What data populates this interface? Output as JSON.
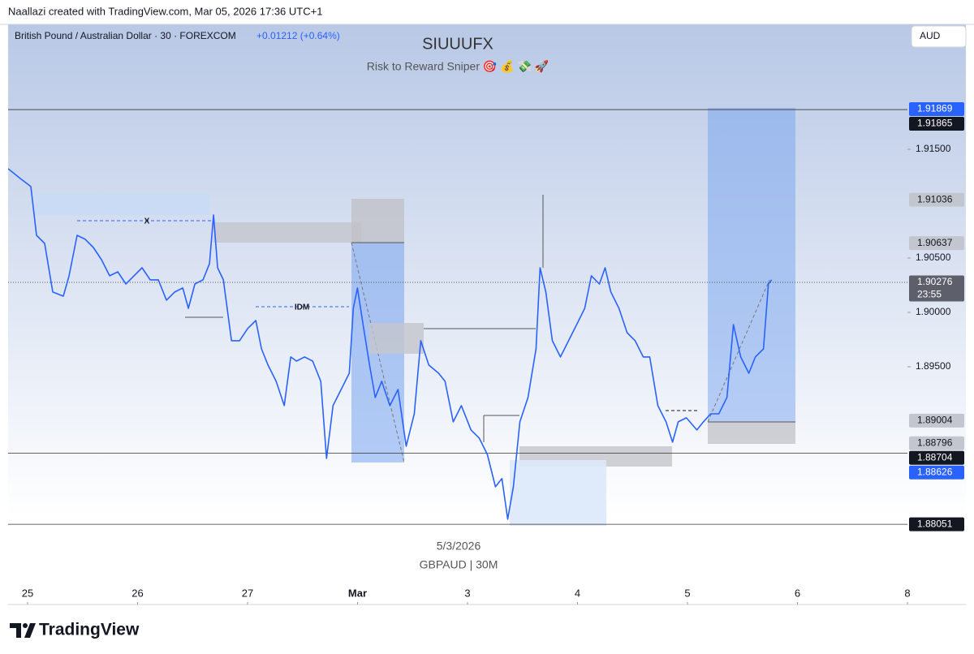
{
  "header": "Naallazi created with TradingView.com, Mar 05, 2026 17:36 UTC+1",
  "footer_logo": "TradingView",
  "chart_data": {
    "type": "line",
    "symbol": "British Pound / Australian Dollar · 30 · FOREXCOM",
    "change": "+0.01212 (+0.64%)",
    "currency": "AUD",
    "title": "SIUUUFX",
    "subtitle": "Risk to Reward Sniper 🎯 💰 💸 🚀",
    "annotations": [
      "X",
      "IDM",
      "5/3/2026",
      "GBPAUD | 30M"
    ],
    "color": "#2962ff",
    "x": [
      -0.177,
      -0.066,
      0.03,
      0.081,
      0.155,
      0.229,
      0.325,
      0.377,
      0.45,
      0.524,
      0.598,
      0.672,
      0.746,
      0.82,
      0.894,
      0.968,
      1.041,
      1.115,
      1.189,
      1.263,
      1.337,
      1.411,
      1.462,
      1.521,
      1.595,
      1.654,
      1.691,
      1.728,
      1.78,
      1.854,
      1.927,
      2.001,
      2.075,
      2.127,
      2.186,
      2.26,
      2.334,
      2.393,
      2.445,
      2.518,
      2.592,
      2.666,
      2.718,
      2.777,
      2.851,
      2.925,
      2.962,
      2.999,
      3.05,
      3.109,
      3.161,
      3.22,
      3.294,
      3.368,
      3.442,
      3.516,
      3.575,
      3.648,
      3.737,
      3.796,
      3.87,
      3.944,
      4.032,
      4.106,
      4.18,
      4.254,
      4.313,
      4.365,
      4.417,
      4.476,
      4.55,
      4.623,
      4.66,
      4.712,
      4.771,
      4.845,
      4.919,
      4.993,
      5.066,
      5.126,
      5.199,
      5.251,
      5.303,
      5.377,
      5.451,
      5.524,
      5.598,
      5.657,
      5.731,
      5.805,
      5.864,
      5.916,
      5.99,
      6.086,
      6.145,
      6.211,
      6.285,
      6.359,
      6.418,
      6.484,
      6.558,
      6.617,
      6.691,
      6.736,
      6.765
    ],
    "values": [
      1.91321,
      1.91231,
      1.91157,
      1.90709,
      1.90634,
      1.90187,
      1.90149,
      1.90336,
      1.90709,
      1.90672,
      1.90597,
      1.90485,
      1.90336,
      1.90373,
      1.90261,
      1.90336,
      1.9041,
      1.90299,
      1.90299,
      1.90112,
      1.90187,
      1.90224,
      1.90037,
      1.90261,
      1.90299,
      1.90448,
      1.90896,
      1.9041,
      1.90299,
      1.89739,
      1.89739,
      1.89851,
      1.89925,
      1.89664,
      1.89515,
      1.89366,
      1.89142,
      1.8959,
      1.89552,
      1.8959,
      1.89552,
      1.89366,
      1.88657,
      1.89142,
      1.89291,
      1.8944,
      1.90037,
      1.90224,
      1.89888,
      1.89515,
      1.89217,
      1.89366,
      1.89142,
      1.89291,
      1.88769,
      1.89067,
      1.89739,
      1.89515,
      1.8944,
      1.89366,
      1.88993,
      1.89142,
      1.88918,
      1.88844,
      1.88694,
      1.88396,
      1.88471,
      1.88098,
      1.88396,
      1.88993,
      1.89217,
      1.89664,
      1.9041,
      1.90187,
      1.89739,
      1.8959,
      1.89739,
      1.89888,
      1.90037,
      1.90336,
      1.90261,
      1.9041,
      1.90187,
      1.90037,
      1.89813,
      1.89739,
      1.8959,
      1.8959,
      1.89142,
      1.88993,
      1.88806,
      1.88993,
      1.8903,
      1.88918,
      1.88993,
      1.89067,
      1.89067,
      1.89217,
      1.89888,
      1.8959,
      1.8944,
      1.8959,
      1.89664,
      1.90261,
      1.90299
    ],
    "xlim": [
      -0.177,
      8.0
    ],
    "ylim": [
      1.87313,
      1.92649
    ],
    "xticks": [
      {
        "value": 0,
        "label": "25"
      },
      {
        "value": 1,
        "label": "26"
      },
      {
        "value": 2,
        "label": "27"
      },
      {
        "value": 3,
        "label": "Mar"
      },
      {
        "value": 4,
        "label": "3"
      },
      {
        "value": 5,
        "label": "4"
      },
      {
        "value": 6,
        "label": "5"
      },
      {
        "value": 7,
        "label": "6"
      },
      {
        "value": 8,
        "label": "8"
      }
    ],
    "yticks": [
      {
        "value": 1.915,
        "label": "1.91500"
      },
      {
        "value": 1.905,
        "label": "1.90500"
      },
      {
        "value": 1.9,
        "label": "1.90000"
      },
      {
        "value": 1.895,
        "label": "1.89500"
      }
    ],
    "grid": false,
    "price_labels": [
      {
        "value": 1.91869,
        "label": "1.91869",
        "color": "#2962ff",
        "text_color": "#ffffff"
      },
      {
        "value": 1.91865,
        "label": "1.91865",
        "color": "#131722",
        "text_color": "#ffffff",
        "line": "solid"
      },
      {
        "value": 1.91036,
        "label": "1.91036",
        "color": "#c3c6ce",
        "text_color": "#131722"
      },
      {
        "value": 1.90637,
        "label": "1.90637",
        "color": "#c3c6ce",
        "text_color": "#131722"
      },
      {
        "value": 1.90276,
        "label": "1.90276",
        "color": "#5d606b",
        "text_color": "#ffffff",
        "line": "dotted",
        "extra": "23:55"
      },
      {
        "value": 1.89004,
        "label": "1.89004",
        "color": "#c3c6ce",
        "text_color": "#131722"
      },
      {
        "value": 1.88796,
        "label": "1.88796",
        "color": "#c3c6ce",
        "text_color": "#131722"
      },
      {
        "value": 1.88704,
        "label": "1.88704",
        "color": "#131722",
        "text_color": "#ffffff",
        "line": "solid"
      },
      {
        "value": 1.88626,
        "label": "1.88626",
        "color": "#2962ff",
        "text_color": "#ffffff"
      },
      {
        "value": 1.88051,
        "label": "1.88051",
        "color": "#131722",
        "text_color": "#ffffff",
        "line": "solid"
      }
    ]
  }
}
